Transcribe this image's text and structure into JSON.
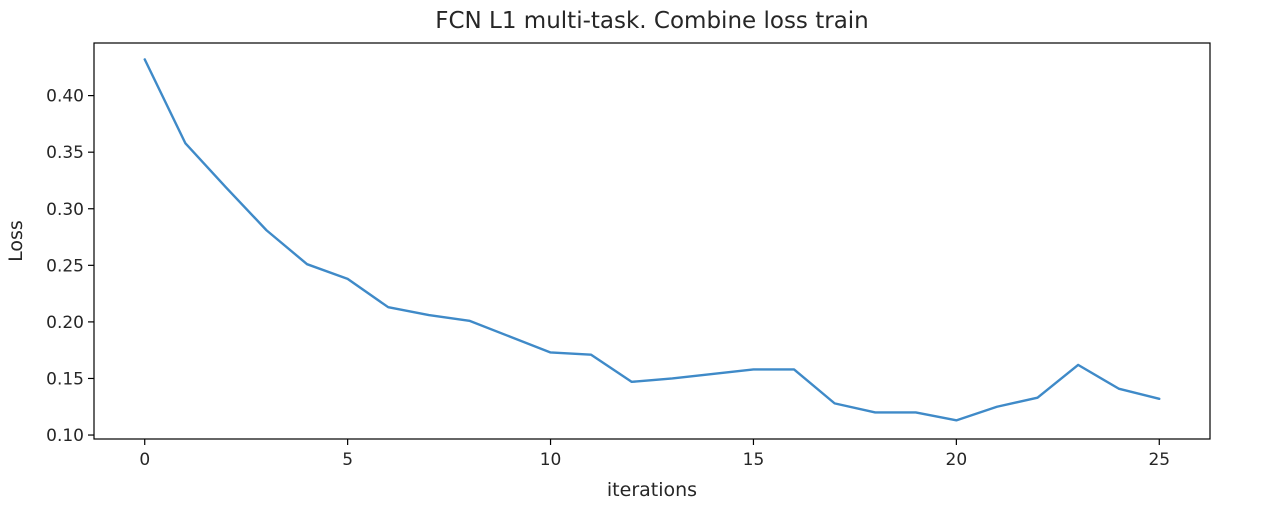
{
  "chart_data": {
    "type": "line",
    "title": "FCN L1 multi-task. Combine loss train",
    "xlabel": "iterations",
    "ylabel": "Loss",
    "x": [
      0,
      1,
      2,
      3,
      4,
      5,
      6,
      7,
      8,
      9,
      10,
      11,
      12,
      13,
      14,
      15,
      16,
      17,
      18,
      19,
      20,
      21,
      22,
      23,
      24,
      25
    ],
    "series": [
      {
        "color": "#3f8ac8",
        "values": [
          0.432,
          0.358,
          0.319,
          0.281,
          0.251,
          0.238,
          0.213,
          0.206,
          0.201,
          0.187,
          0.173,
          0.171,
          0.147,
          0.15,
          0.154,
          0.158,
          0.158,
          0.128,
          0.12,
          0.12,
          0.113,
          0.125,
          0.133,
          0.162,
          0.141,
          0.132
        ]
      }
    ],
    "xlim": [
      -1.25,
      26.25
    ],
    "ylim": [
      0.0965,
      0.4465
    ],
    "xticks": [
      0,
      5,
      10,
      15,
      20,
      25
    ],
    "xtick_labels": [
      "0",
      "5",
      "10",
      "15",
      "20",
      "25"
    ],
    "yticks": [
      0.1,
      0.15,
      0.2,
      0.25,
      0.3,
      0.35,
      0.4
    ],
    "ytick_labels": [
      "0.10",
      "0.15",
      "0.20",
      "0.25",
      "0.30",
      "0.35",
      "0.40"
    ],
    "grid": false,
    "legend": "none"
  }
}
